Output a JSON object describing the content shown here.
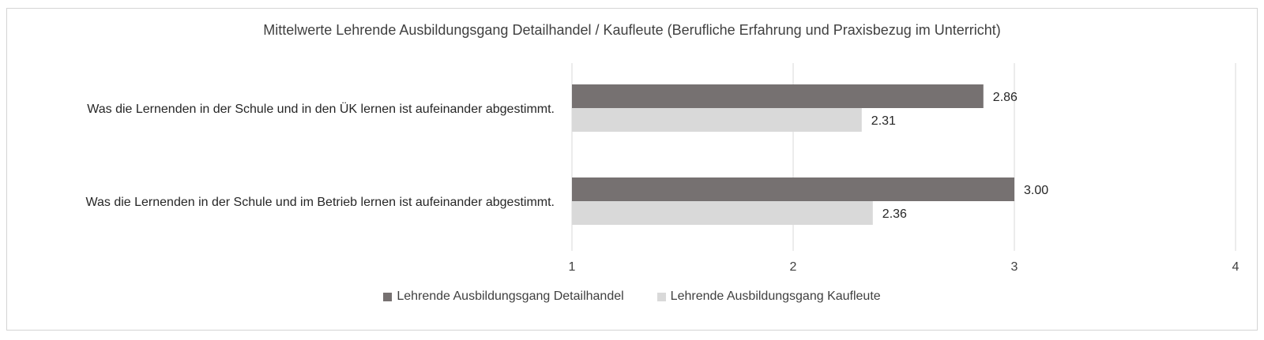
{
  "chart_data": {
    "type": "bar",
    "orientation": "horizontal",
    "title": "Mittelwerte Lehrende Ausbildungsgang Detailhandel / Kaufleute (Berufliche Erfahrung und Praxisbezug im Unterricht)",
    "categories": [
      "Was die Lernenden in der Schule und in den ÜK lernen ist aufeinander abgestimmt.",
      "Was die Lernenden in der Schule und im Betrieb lernen ist aufeinander abgestimmt."
    ],
    "series": [
      {
        "name": "Lehrende Ausbildungsgang Detailhandel",
        "color": "#767171",
        "values": [
          2.86,
          3.0
        ],
        "labels": [
          "2.86",
          "3.00"
        ]
      },
      {
        "name": "Lehrende Ausbildungsgang Kaufleute",
        "color": "#d9d9d9",
        "values": [
          2.31,
          2.36
        ],
        "labels": [
          "2.31",
          "2.36"
        ]
      }
    ],
    "xlim": [
      1,
      4
    ],
    "xticks": [
      "1",
      "2",
      "3",
      "4"
    ],
    "grid": true,
    "legend_position": "bottom"
  }
}
